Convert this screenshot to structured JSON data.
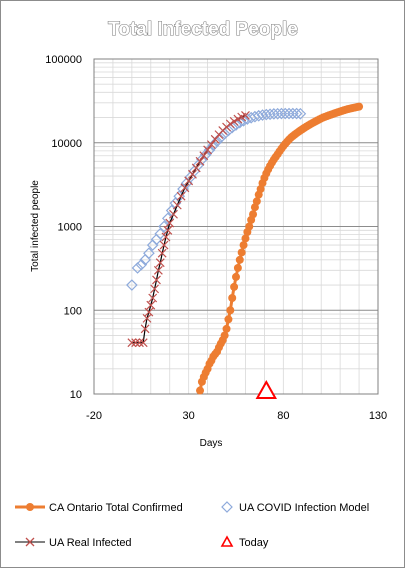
{
  "chart_data": {
    "type": "scatter",
    "title": "Total Infected People",
    "xlabel": "Days",
    "ylabel": "Total infected people",
    "x_range": [
      -20,
      130
    ],
    "x_ticks": [
      -20,
      30,
      80,
      130
    ],
    "x_tick_labels": [
      "-20",
      "30",
      "80",
      "130"
    ],
    "y_scale": "log",
    "y_range": [
      10,
      100000
    ],
    "y_ticks": [
      10,
      100,
      1000,
      10000,
      100000
    ],
    "y_tick_labels": [
      "10",
      "100",
      "1000",
      "10000",
      "100000"
    ],
    "grid": true,
    "legend_position": "bottom",
    "series": [
      {
        "name": "CA Ontario Total Confirmed",
        "color": "#ed7d31",
        "marker": "circle",
        "line": true,
        "points": [
          [
            36,
            11
          ],
          [
            37,
            14
          ],
          [
            38,
            16
          ],
          [
            39,
            18
          ],
          [
            40,
            20
          ],
          [
            41,
            23
          ],
          [
            42,
            25
          ],
          [
            43,
            28
          ],
          [
            44,
            30
          ],
          [
            45,
            32
          ],
          [
            46,
            36
          ],
          [
            47,
            40
          ],
          [
            48,
            44
          ],
          [
            49,
            50
          ],
          [
            50,
            60
          ],
          [
            51,
            78
          ],
          [
            52,
            100
          ],
          [
            53,
            140
          ],
          [
            54,
            190
          ],
          [
            55,
            250
          ],
          [
            56,
            320
          ],
          [
            57,
            400
          ],
          [
            58,
            490
          ],
          [
            59,
            600
          ],
          [
            60,
            720
          ],
          [
            61,
            860
          ],
          [
            62,
            1000
          ],
          [
            63,
            1200
          ],
          [
            64,
            1400
          ],
          [
            65,
            1700
          ],
          [
            66,
            2000
          ],
          [
            67,
            2400
          ],
          [
            68,
            2800
          ],
          [
            69,
            3300
          ],
          [
            70,
            3800
          ],
          [
            71,
            4300
          ],
          [
            72,
            4800
          ],
          [
            73,
            5300
          ],
          [
            74,
            5800
          ],
          [
            75,
            6300
          ],
          [
            76,
            6800
          ],
          [
            77,
            7300
          ],
          [
            78,
            7900
          ],
          [
            79,
            8500
          ],
          [
            80,
            9100
          ],
          [
            81,
            9700
          ],
          [
            82,
            10300
          ],
          [
            83,
            10900
          ],
          [
            84,
            11500
          ],
          [
            85,
            12000
          ],
          [
            86,
            12500
          ],
          [
            87,
            13000
          ],
          [
            88,
            13500
          ],
          [
            89,
            14000
          ],
          [
            90,
            14500
          ],
          [
            91,
            15000
          ],
          [
            92,
            15500
          ],
          [
            93,
            16000
          ],
          [
            94,
            16500
          ],
          [
            95,
            17000
          ],
          [
            96,
            17500
          ],
          [
            97,
            18000
          ],
          [
            98,
            18500
          ],
          [
            99,
            19000
          ],
          [
            100,
            19500
          ],
          [
            101,
            20000
          ],
          [
            102,
            20400
          ],
          [
            103,
            20800
          ],
          [
            104,
            21200
          ],
          [
            105,
            21600
          ],
          [
            106,
            22000
          ],
          [
            107,
            22400
          ],
          [
            108,
            22800
          ],
          [
            109,
            23200
          ],
          [
            110,
            23600
          ],
          [
            111,
            24000
          ],
          [
            112,
            24400
          ],
          [
            113,
            24800
          ],
          [
            114,
            25200
          ],
          [
            115,
            25500
          ],
          [
            116,
            25800
          ],
          [
            117,
            26100
          ],
          [
            118,
            26400
          ],
          [
            119,
            26700
          ],
          [
            120,
            27000
          ]
        ]
      },
      {
        "name": "UA COVID Infection Model",
        "color": "#8eaadb",
        "marker": "diamond",
        "line": false,
        "points": [
          [
            0,
            200
          ],
          [
            3,
            320
          ],
          [
            5,
            350
          ],
          [
            7,
            400
          ],
          [
            9,
            480
          ],
          [
            11,
            600
          ],
          [
            13,
            700
          ],
          [
            15,
            820
          ],
          [
            17,
            1000
          ],
          [
            19,
            1250
          ],
          [
            21,
            1550
          ],
          [
            23,
            1900
          ],
          [
            25,
            2300
          ],
          [
            27,
            2800
          ],
          [
            29,
            3300
          ],
          [
            31,
            3900
          ],
          [
            33,
            4600
          ],
          [
            35,
            5400
          ],
          [
            37,
            6300
          ],
          [
            39,
            7200
          ],
          [
            41,
            8200
          ],
          [
            43,
            9300
          ],
          [
            45,
            10400
          ],
          [
            47,
            11600
          ],
          [
            49,
            12800
          ],
          [
            51,
            14000
          ],
          [
            53,
            15200
          ],
          [
            55,
            16300
          ],
          [
            57,
            17400
          ],
          [
            59,
            18300
          ],
          [
            61,
            19200
          ],
          [
            63,
            19900
          ],
          [
            65,
            20500
          ],
          [
            67,
            21000
          ],
          [
            69,
            21400
          ],
          [
            71,
            21700
          ],
          [
            73,
            21900
          ],
          [
            75,
            22100
          ],
          [
            77,
            22200
          ],
          [
            79,
            22300
          ],
          [
            81,
            22300
          ],
          [
            83,
            22300
          ],
          [
            85,
            22300
          ],
          [
            87,
            22300
          ],
          [
            89,
            22200
          ]
        ]
      },
      {
        "name": "UA Real Infected",
        "color": "#c0504d",
        "line_color": "#000000",
        "marker": "x",
        "line": true,
        "points": [
          [
            0,
            41
          ],
          [
            2,
            41
          ],
          [
            4,
            41
          ],
          [
            6,
            41
          ],
          [
            7,
            60
          ],
          [
            8,
            80
          ],
          [
            9,
            95
          ],
          [
            10,
            115
          ],
          [
            11,
            140
          ],
          [
            12,
            180
          ],
          [
            13,
            230
          ],
          [
            14,
            300
          ],
          [
            15,
            370
          ],
          [
            16,
            480
          ],
          [
            17,
            600
          ],
          [
            18,
            750
          ],
          [
            19,
            900
          ],
          [
            20,
            1100
          ],
          [
            22,
            1400
          ],
          [
            24,
            1800
          ],
          [
            26,
            2300
          ],
          [
            28,
            2900
          ],
          [
            30,
            3500
          ],
          [
            32,
            4200
          ],
          [
            34,
            5000
          ],
          [
            36,
            6000
          ],
          [
            38,
            7000
          ],
          [
            40,
            8200
          ],
          [
            42,
            9500
          ],
          [
            44,
            11000
          ],
          [
            46,
            12500
          ],
          [
            48,
            14000
          ],
          [
            50,
            15400
          ],
          [
            52,
            16800
          ],
          [
            54,
            18000
          ],
          [
            56,
            19200
          ],
          [
            58,
            20300
          ],
          [
            60,
            21200
          ]
        ]
      },
      {
        "name": "Today",
        "color": "#ff0000",
        "marker": "triangle",
        "line": false,
        "points": [
          [
            71,
            10
          ]
        ]
      }
    ]
  }
}
